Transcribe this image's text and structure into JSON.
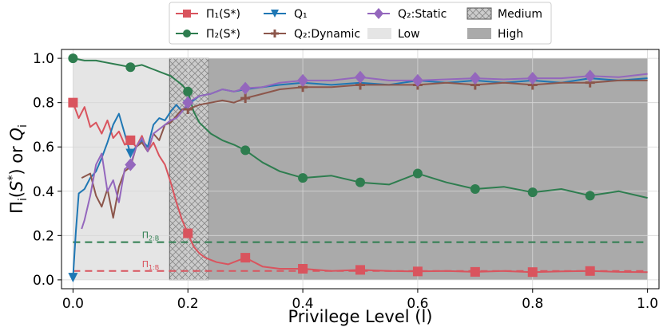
{
  "chart_data": {
    "type": "line",
    "title": "",
    "xlabel": "Privilege Level (l)",
    "ylabel": "Π_i(S*) or Q_i",
    "xlim": [
      -0.02,
      1.02
    ],
    "ylim": [
      -0.04,
      1.04
    ],
    "xticks": [
      0.0,
      0.2,
      0.4,
      0.6,
      0.8,
      1.0
    ],
    "xtick_labels": [
      "0.0",
      "0.2",
      "0.4",
      "0.6",
      "0.8",
      "1.0"
    ],
    "yticks": [
      0.0,
      0.2,
      0.4,
      0.6,
      0.8,
      1.0
    ],
    "ytick_labels": [
      "0.0",
      "0.2",
      "0.4",
      "0.6",
      "0.8",
      "1.0"
    ],
    "grid": true,
    "legend_position": "top-center",
    "regions": [
      {
        "name": "Low",
        "x0": 0.0,
        "x1": 0.168,
        "color": "#e5e5e5",
        "pattern": "none"
      },
      {
        "name": "Medium",
        "x0": 0.168,
        "x1": 0.236,
        "color": "#cccccc",
        "pattern": "crosshatch"
      },
      {
        "name": "High",
        "x0": 0.236,
        "x1": 1.0,
        "color": "#aaaaaa",
        "pattern": "none"
      }
    ],
    "baselines": [
      {
        "label": "Π_{2:B}",
        "y": 0.17,
        "color": "#2e7d4f"
      },
      {
        "label": "Π_{1:B}",
        "y": 0.04,
        "color": "#d9545e"
      }
    ],
    "series": [
      {
        "name": "Π1(S*)",
        "color": "#d9545e",
        "marker": "square",
        "x": [
          0.0,
          0.01,
          0.02,
          0.03,
          0.04,
          0.05,
          0.06,
          0.07,
          0.08,
          0.09,
          0.1,
          0.11,
          0.12,
          0.13,
          0.14,
          0.15,
          0.16,
          0.17,
          0.18,
          0.19,
          0.2,
          0.21,
          0.22,
          0.23,
          0.24,
          0.25,
          0.27,
          0.3,
          0.33,
          0.36,
          0.4,
          0.45,
          0.5,
          0.55,
          0.6,
          0.65,
          0.7,
          0.75,
          0.8,
          0.85,
          0.9,
          0.95,
          1.0
        ],
        "y": [
          0.8,
          0.73,
          0.78,
          0.69,
          0.71,
          0.66,
          0.72,
          0.64,
          0.67,
          0.61,
          0.63,
          0.6,
          0.65,
          0.58,
          0.62,
          0.56,
          0.52,
          0.44,
          0.35,
          0.27,
          0.21,
          0.15,
          0.12,
          0.1,
          0.09,
          0.08,
          0.07,
          0.1,
          0.06,
          0.05,
          0.05,
          0.04,
          0.045,
          0.04,
          0.038,
          0.04,
          0.036,
          0.04,
          0.035,
          0.038,
          0.04,
          0.036,
          0.035
        ],
        "markers_x": [
          0.0,
          0.1,
          0.2,
          0.3,
          0.4,
          0.5,
          0.6,
          0.7,
          0.8,
          0.9
        ],
        "markers_y": [
          0.8,
          0.63,
          0.21,
          0.1,
          0.05,
          0.045,
          0.038,
          0.036,
          0.035,
          0.04
        ]
      },
      {
        "name": "Π2(S*)",
        "color": "#2e7d4f",
        "marker": "circle",
        "x": [
          0.0,
          0.02,
          0.04,
          0.06,
          0.08,
          0.1,
          0.12,
          0.14,
          0.16,
          0.17,
          0.18,
          0.19,
          0.2,
          0.21,
          0.22,
          0.24,
          0.26,
          0.28,
          0.3,
          0.33,
          0.36,
          0.4,
          0.45,
          0.5,
          0.55,
          0.6,
          0.65,
          0.7,
          0.75,
          0.8,
          0.85,
          0.9,
          0.95,
          1.0
        ],
        "y": [
          1.0,
          0.99,
          0.99,
          0.98,
          0.97,
          0.96,
          0.97,
          0.95,
          0.93,
          0.92,
          0.9,
          0.88,
          0.85,
          0.76,
          0.71,
          0.66,
          0.63,
          0.61,
          0.585,
          0.53,
          0.49,
          0.46,
          0.47,
          0.44,
          0.43,
          0.48,
          0.44,
          0.41,
          0.42,
          0.395,
          0.41,
          0.38,
          0.4,
          0.37
        ],
        "markers_x": [
          0.0,
          0.1,
          0.2,
          0.3,
          0.4,
          0.5,
          0.6,
          0.7,
          0.8,
          0.9
        ],
        "markers_y": [
          1.0,
          0.96,
          0.85,
          0.585,
          0.46,
          0.44,
          0.48,
          0.41,
          0.395,
          0.38
        ]
      },
      {
        "name": "Q1",
        "color": "#1f77b4",
        "marker": "triangle-down",
        "x": [
          0.0,
          0.005,
          0.01,
          0.02,
          0.03,
          0.04,
          0.05,
          0.06,
          0.07,
          0.08,
          0.09,
          0.1,
          0.11,
          0.12,
          0.13,
          0.14,
          0.15,
          0.16,
          0.17,
          0.18,
          0.19,
          0.2,
          0.22,
          0.24,
          0.26,
          0.28,
          0.3,
          0.33,
          0.36,
          0.4,
          0.45,
          0.5,
          0.55,
          0.6,
          0.65,
          0.7,
          0.75,
          0.8,
          0.85,
          0.9,
          0.95,
          1.0
        ],
        "y": [
          0.01,
          0.22,
          0.39,
          0.41,
          0.46,
          0.49,
          0.55,
          0.62,
          0.7,
          0.75,
          0.66,
          0.57,
          0.6,
          0.63,
          0.6,
          0.7,
          0.73,
          0.72,
          0.76,
          0.79,
          0.76,
          0.79,
          0.83,
          0.84,
          0.86,
          0.85,
          0.86,
          0.87,
          0.88,
          0.89,
          0.88,
          0.89,
          0.88,
          0.9,
          0.89,
          0.9,
          0.89,
          0.9,
          0.89,
          0.91,
          0.9,
          0.91
        ],
        "markers_x": [
          0.0,
          0.1,
          0.2
        ],
        "markers_y": [
          0.01,
          0.57,
          0.79
        ]
      },
      {
        "name": "Q2:Dynamic",
        "color": "#8c564b",
        "marker": "plus",
        "x": [
          0.015,
          0.03,
          0.04,
          0.05,
          0.06,
          0.07,
          0.08,
          0.09,
          0.1,
          0.11,
          0.12,
          0.13,
          0.14,
          0.15,
          0.16,
          0.17,
          0.18,
          0.19,
          0.2,
          0.22,
          0.24,
          0.26,
          0.28,
          0.3,
          0.33,
          0.36,
          0.4,
          0.45,
          0.5,
          0.55,
          0.6,
          0.65,
          0.7,
          0.75,
          0.8,
          0.85,
          0.9,
          0.95,
          1.0
        ],
        "y": [
          0.46,
          0.48,
          0.38,
          0.33,
          0.41,
          0.28,
          0.42,
          0.49,
          0.51,
          0.6,
          0.62,
          0.58,
          0.66,
          0.63,
          0.7,
          0.71,
          0.74,
          0.77,
          0.77,
          0.79,
          0.8,
          0.81,
          0.8,
          0.82,
          0.84,
          0.86,
          0.87,
          0.87,
          0.88,
          0.88,
          0.88,
          0.89,
          0.88,
          0.89,
          0.88,
          0.89,
          0.89,
          0.9,
          0.9
        ],
        "markers_x": [
          0.2,
          0.3,
          0.4,
          0.5,
          0.6,
          0.7,
          0.8,
          0.9
        ],
        "markers_y": [
          0.77,
          0.82,
          0.87,
          0.88,
          0.88,
          0.88,
          0.88,
          0.89
        ]
      },
      {
        "name": "Q2:Static",
        "color": "#9467bd",
        "marker": "diamond",
        "x": [
          0.015,
          0.02,
          0.03,
          0.04,
          0.05,
          0.06,
          0.07,
          0.08,
          0.09,
          0.1,
          0.11,
          0.12,
          0.13,
          0.14,
          0.15,
          0.16,
          0.17,
          0.18,
          0.19,
          0.2,
          0.22,
          0.24,
          0.26,
          0.28,
          0.3,
          0.33,
          0.36,
          0.4,
          0.45,
          0.5,
          0.55,
          0.6,
          0.65,
          0.7,
          0.75,
          0.8,
          0.85,
          0.9,
          0.95,
          1.0
        ],
        "y": [
          0.23,
          0.27,
          0.38,
          0.52,
          0.57,
          0.4,
          0.45,
          0.35,
          0.5,
          0.52,
          0.6,
          0.64,
          0.58,
          0.66,
          0.68,
          0.7,
          0.72,
          0.73,
          0.76,
          0.8,
          0.83,
          0.84,
          0.86,
          0.85,
          0.865,
          0.87,
          0.89,
          0.9,
          0.9,
          0.915,
          0.9,
          0.9,
          0.905,
          0.91,
          0.905,
          0.91,
          0.91,
          0.92,
          0.915,
          0.93
        ],
        "markers_x": [
          0.1,
          0.2,
          0.3,
          0.4,
          0.5,
          0.6,
          0.7,
          0.8,
          0.9
        ],
        "markers_y": [
          0.52,
          0.8,
          0.865,
          0.9,
          0.915,
          0.9,
          0.91,
          0.91,
          0.92
        ]
      }
    ]
  },
  "legend": {
    "items": [
      {
        "label": "Π₁(S*)",
        "kind": "line",
        "series": 0
      },
      {
        "label": "Π₂(S*)",
        "kind": "line",
        "series": 1
      },
      {
        "label": "Q₁",
        "kind": "line",
        "series": 2
      },
      {
        "label": "Q₂:Dynamic",
        "kind": "line",
        "series": 3
      },
      {
        "label": "Q₂:Static",
        "kind": "line",
        "series": 4
      },
      {
        "label": "Low",
        "kind": "patch",
        "region": 0
      },
      {
        "label": "Medium",
        "kind": "patch",
        "region": 1
      },
      {
        "label": "High",
        "kind": "patch",
        "region": 2
      }
    ]
  }
}
